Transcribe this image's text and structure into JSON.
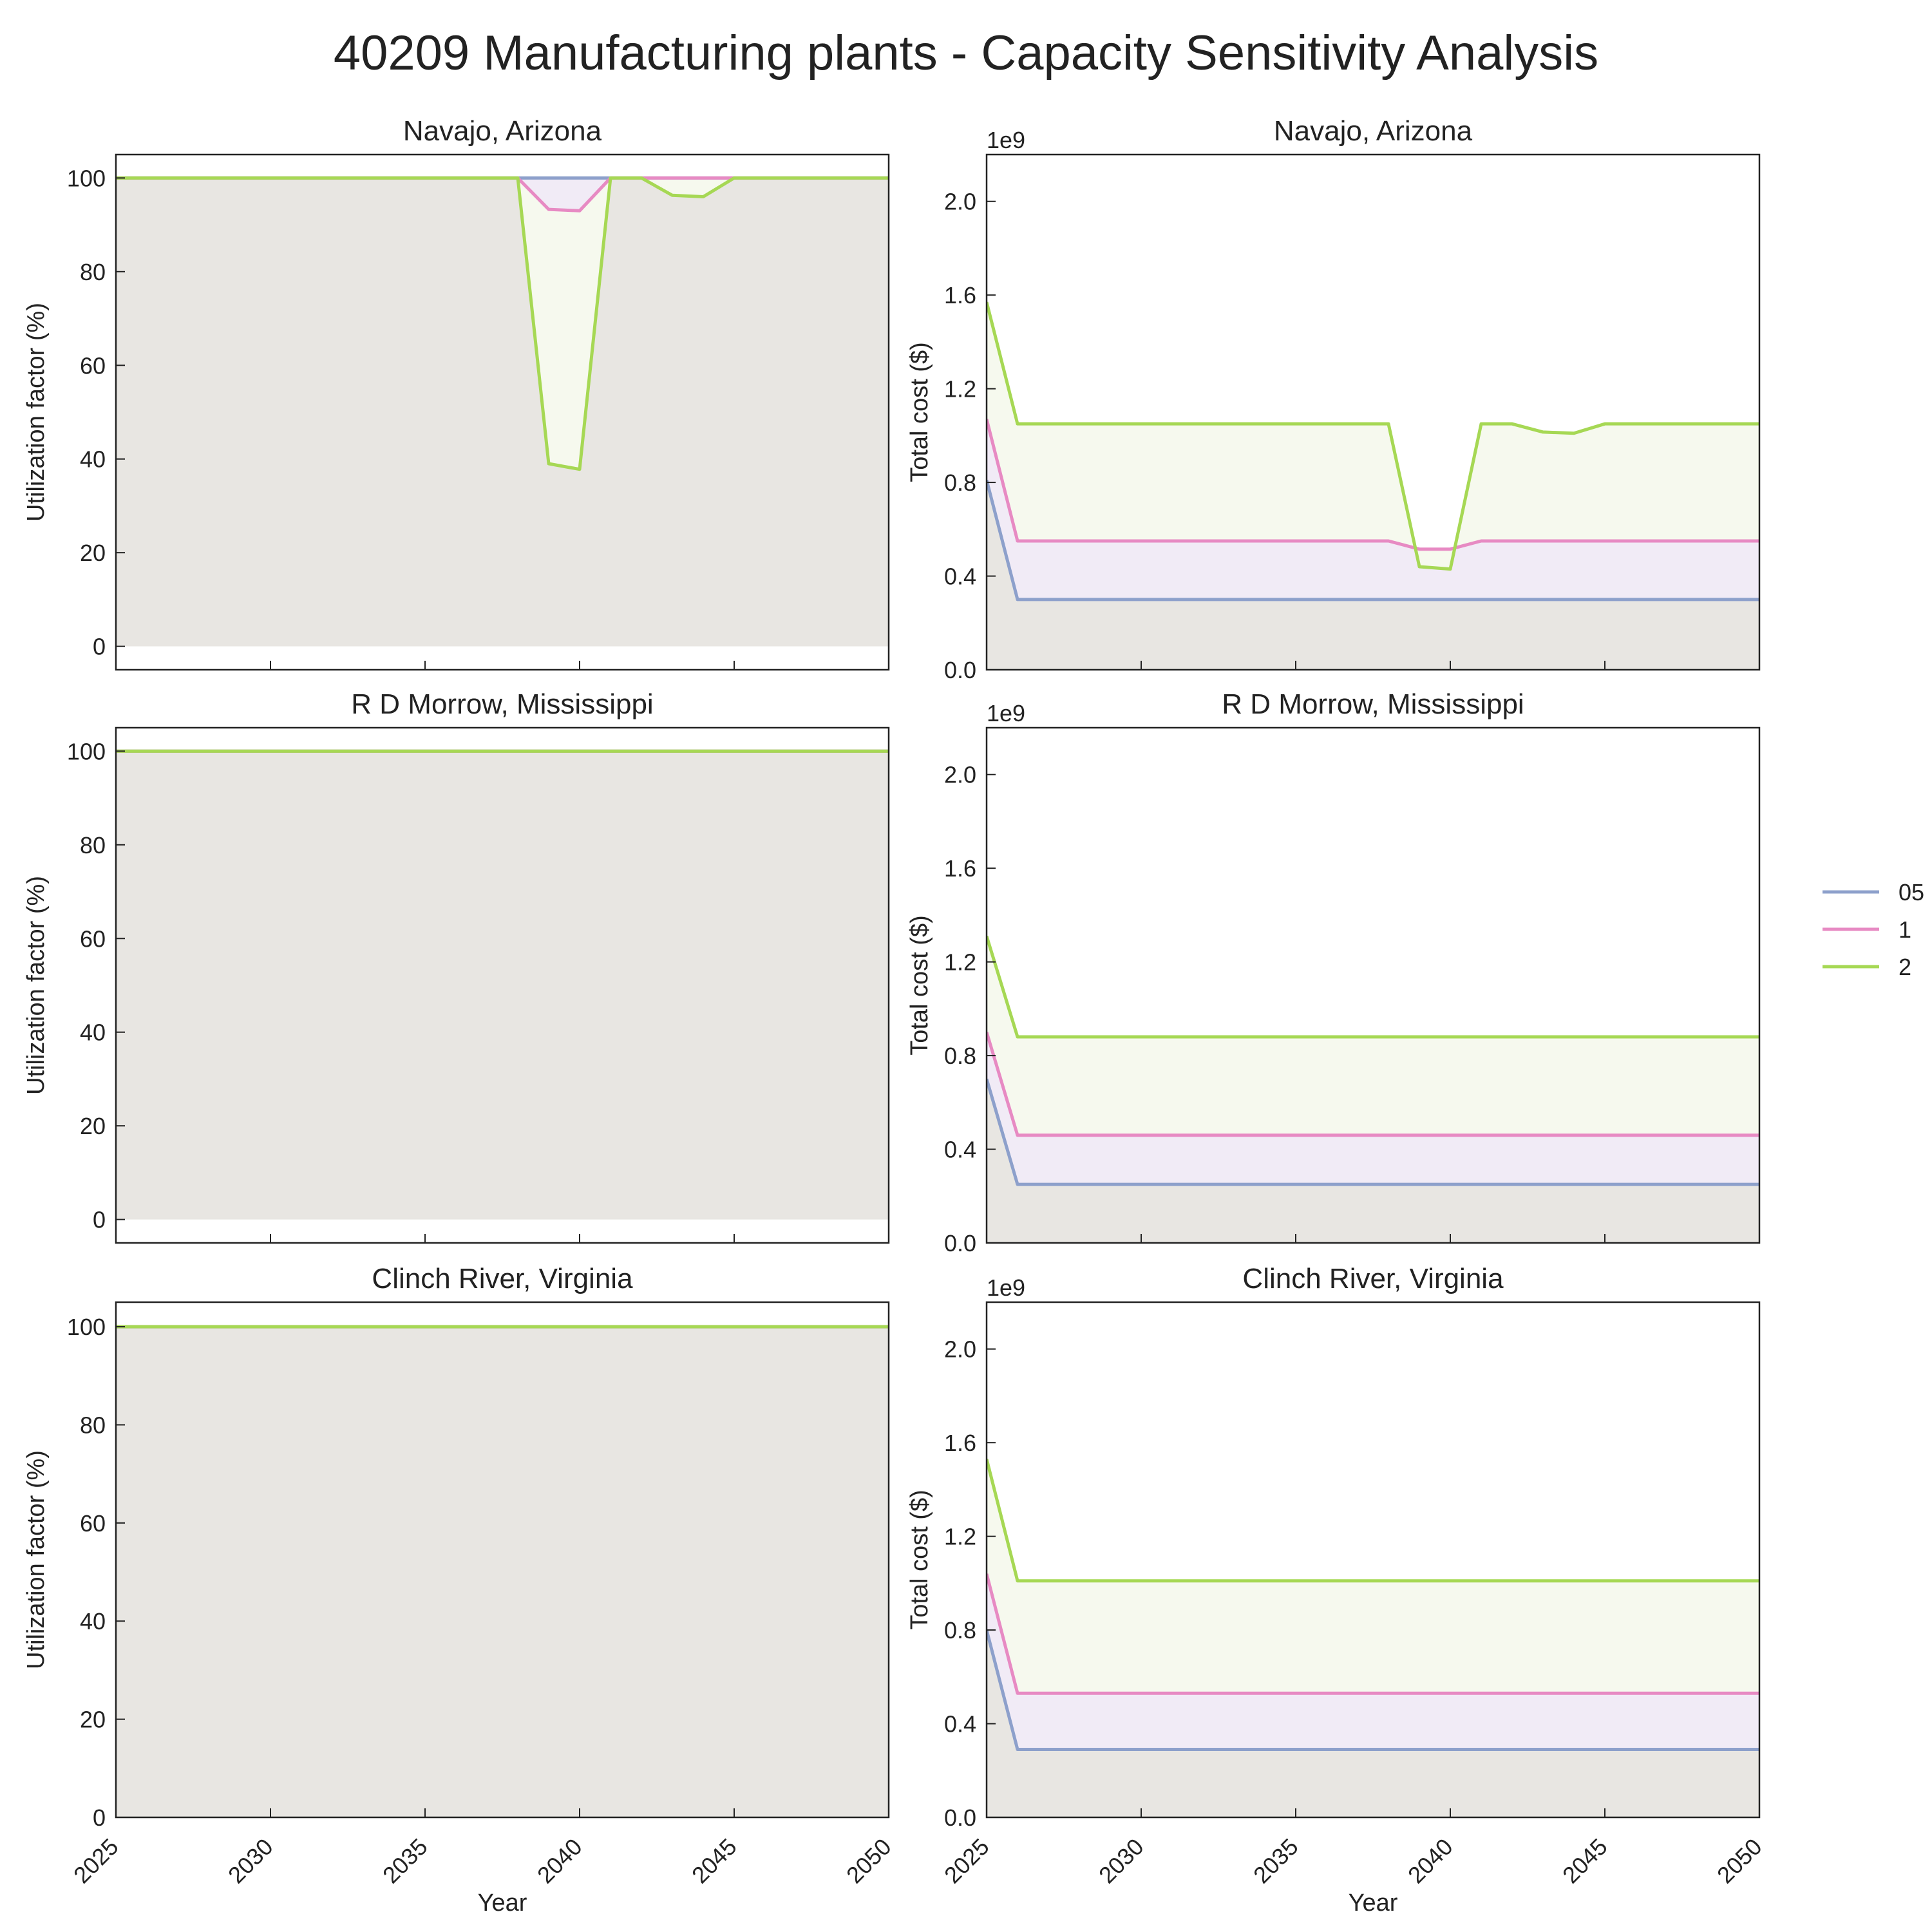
{
  "figure": {
    "title": "40209 Manufacturing plants - Capacity Sensitivity Analysis"
  },
  "legend": {
    "placement": "right",
    "entries": [
      {
        "name": "05",
        "color": "#8da0cb"
      },
      {
        "name": "1",
        "color": "#e78ac3"
      },
      {
        "name": "2",
        "color": "#a6d854"
      }
    ]
  },
  "chart_data": [
    {
      "type": "area",
      "title": "Navajo, Arizona",
      "ylabel": "Utilization factor (%)",
      "xlabel": "",
      "xlim": [
        2025,
        2050
      ],
      "ylim": [
        -5,
        105
      ],
      "yticks": [
        "0",
        "20",
        "40",
        "60",
        "80",
        "100"
      ],
      "x": [
        2025,
        2026,
        2027,
        2028,
        2029,
        2030,
        2031,
        2032,
        2033,
        2034,
        2035,
        2036,
        2037,
        2038,
        2039,
        2040,
        2041,
        2042,
        2043,
        2044,
        2045,
        2046,
        2047,
        2048,
        2049,
        2050
      ],
      "series": [
        {
          "name": "05",
          "values": [
            100,
            100,
            100,
            100,
            100,
            100,
            100,
            100,
            100,
            100,
            100,
            100,
            100,
            100,
            100,
            100,
            100,
            100,
            100,
            100,
            100,
            100,
            100,
            100,
            100,
            100
          ]
        },
        {
          "name": "1",
          "values": [
            100,
            100,
            100,
            100,
            100,
            100,
            100,
            100,
            100,
            100,
            100,
            100,
            100,
            100,
            93.3,
            93,
            100,
            100,
            100,
            100,
            100,
            100,
            100,
            100,
            100,
            100
          ]
        },
        {
          "name": "2",
          "values": [
            100,
            100,
            100,
            100,
            100,
            100,
            100,
            100,
            100,
            100,
            100,
            100,
            100,
            100,
            39,
            37.8,
            100,
            100,
            96.3,
            96,
            100,
            100,
            100,
            100,
            100,
            100
          ]
        }
      ]
    },
    {
      "type": "area",
      "title": "Navajo, Arizona",
      "ylabel": "Total cost ($)",
      "xlabel": "",
      "offset_text": "1e9",
      "xlim": [
        2025,
        2050
      ],
      "ylim": [
        0,
        2.2
      ],
      "yticks": [
        "0.0",
        "0.4",
        "0.8",
        "1.2",
        "1.6",
        "2.0"
      ],
      "x": [
        2025,
        2026,
        2027,
        2028,
        2029,
        2030,
        2031,
        2032,
        2033,
        2034,
        2035,
        2036,
        2037,
        2038,
        2039,
        2040,
        2041,
        2042,
        2043,
        2044,
        2045,
        2046,
        2047,
        2048,
        2049,
        2050
      ],
      "series": [
        {
          "name": "05",
          "values": [
            0.81,
            0.3,
            0.3,
            0.3,
            0.3,
            0.3,
            0.3,
            0.3,
            0.3,
            0.3,
            0.3,
            0.3,
            0.3,
            0.3,
            0.3,
            0.3,
            0.3,
            0.3,
            0.3,
            0.3,
            0.3,
            0.3,
            0.3,
            0.3,
            0.3,
            0.3
          ]
        },
        {
          "name": "1",
          "values": [
            1.07,
            0.55,
            0.55,
            0.55,
            0.55,
            0.55,
            0.55,
            0.55,
            0.55,
            0.55,
            0.55,
            0.55,
            0.55,
            0.55,
            0.515,
            0.515,
            0.55,
            0.55,
            0.55,
            0.55,
            0.55,
            0.55,
            0.55,
            0.55,
            0.55,
            0.55
          ]
        },
        {
          "name": "2",
          "values": [
            1.57,
            1.05,
            1.05,
            1.05,
            1.05,
            1.05,
            1.05,
            1.05,
            1.05,
            1.05,
            1.05,
            1.05,
            1.05,
            1.05,
            0.44,
            0.43,
            1.05,
            1.05,
            1.015,
            1.01,
            1.05,
            1.05,
            1.05,
            1.05,
            1.05,
            1.05
          ]
        }
      ]
    },
    {
      "type": "area",
      "title": "R D Morrow, Mississippi",
      "ylabel": "Utilization factor (%)",
      "xlabel": "",
      "xlim": [
        2025,
        2050
      ],
      "ylim": [
        -5,
        105
      ],
      "yticks": [
        "0",
        "20",
        "40",
        "60",
        "80",
        "100"
      ],
      "x": [
        2025,
        2026,
        2027,
        2028,
        2029,
        2030,
        2031,
        2032,
        2033,
        2034,
        2035,
        2036,
        2037,
        2038,
        2039,
        2040,
        2041,
        2042,
        2043,
        2044,
        2045,
        2046,
        2047,
        2048,
        2049,
        2050
      ],
      "series": [
        {
          "name": "05",
          "values": [
            100,
            100,
            100,
            100,
            100,
            100,
            100,
            100,
            100,
            100,
            100,
            100,
            100,
            100,
            100,
            100,
            100,
            100,
            100,
            100,
            100,
            100,
            100,
            100,
            100,
            100
          ]
        },
        {
          "name": "1",
          "values": [
            100,
            100,
            100,
            100,
            100,
            100,
            100,
            100,
            100,
            100,
            100,
            100,
            100,
            100,
            100,
            100,
            100,
            100,
            100,
            100,
            100,
            100,
            100,
            100,
            100,
            100
          ]
        },
        {
          "name": "2",
          "values": [
            100,
            100,
            100,
            100,
            100,
            100,
            100,
            100,
            100,
            100,
            100,
            100,
            100,
            100,
            100,
            100,
            100,
            100,
            100,
            100,
            100,
            100,
            100,
            100,
            100,
            100
          ]
        }
      ]
    },
    {
      "type": "area",
      "title": "R D Morrow, Mississippi",
      "ylabel": "Total cost ($)",
      "xlabel": "",
      "offset_text": "1e9",
      "xlim": [
        2025,
        2050
      ],
      "ylim": [
        0,
        2.2
      ],
      "yticks": [
        "0.0",
        "0.4",
        "0.8",
        "1.2",
        "1.6",
        "2.0"
      ],
      "x": [
        2025,
        2026,
        2027,
        2028,
        2029,
        2030,
        2031,
        2032,
        2033,
        2034,
        2035,
        2036,
        2037,
        2038,
        2039,
        2040,
        2041,
        2042,
        2043,
        2044,
        2045,
        2046,
        2047,
        2048,
        2049,
        2050
      ],
      "series": [
        {
          "name": "05",
          "values": [
            0.7,
            0.25,
            0.25,
            0.25,
            0.25,
            0.25,
            0.25,
            0.25,
            0.25,
            0.25,
            0.25,
            0.25,
            0.25,
            0.25,
            0.25,
            0.25,
            0.25,
            0.25,
            0.25,
            0.25,
            0.25,
            0.25,
            0.25,
            0.25,
            0.25,
            0.25
          ]
        },
        {
          "name": "1",
          "values": [
            0.9,
            0.46,
            0.46,
            0.46,
            0.46,
            0.46,
            0.46,
            0.46,
            0.46,
            0.46,
            0.46,
            0.46,
            0.46,
            0.46,
            0.46,
            0.46,
            0.46,
            0.46,
            0.46,
            0.46,
            0.46,
            0.46,
            0.46,
            0.46,
            0.46,
            0.46
          ]
        },
        {
          "name": "2",
          "values": [
            1.31,
            0.88,
            0.88,
            0.88,
            0.88,
            0.88,
            0.88,
            0.88,
            0.88,
            0.88,
            0.88,
            0.88,
            0.88,
            0.88,
            0.88,
            0.88,
            0.88,
            0.88,
            0.88,
            0.88,
            0.88,
            0.88,
            0.88,
            0.88,
            0.88,
            0.88
          ]
        }
      ]
    },
    {
      "type": "area",
      "title": "Clinch River, Virginia",
      "ylabel": "Utilization factor (%)",
      "xlabel": "Year",
      "xlim": [
        2025,
        2050
      ],
      "ylim": [
        0,
        105
      ],
      "yticks": [
        "0",
        "20",
        "40",
        "60",
        "80",
        "100"
      ],
      "xticks": [
        "2025",
        "2030",
        "2035",
        "2040",
        "2045",
        "2050"
      ],
      "x": [
        2025,
        2026,
        2027,
        2028,
        2029,
        2030,
        2031,
        2032,
        2033,
        2034,
        2035,
        2036,
        2037,
        2038,
        2039,
        2040,
        2041,
        2042,
        2043,
        2044,
        2045,
        2046,
        2047,
        2048,
        2049,
        2050
      ],
      "series": [
        {
          "name": "05",
          "values": [
            100,
            100,
            100,
            100,
            100,
            100,
            100,
            100,
            100,
            100,
            100,
            100,
            100,
            100,
            100,
            100,
            100,
            100,
            100,
            100,
            100,
            100,
            100,
            100,
            100,
            100
          ]
        },
        {
          "name": "1",
          "values": [
            100,
            100,
            100,
            100,
            100,
            100,
            100,
            100,
            100,
            100,
            100,
            100,
            100,
            100,
            100,
            100,
            100,
            100,
            100,
            100,
            100,
            100,
            100,
            100,
            100,
            100
          ]
        },
        {
          "name": "2",
          "values": [
            100,
            100,
            100,
            100,
            100,
            100,
            100,
            100,
            100,
            100,
            100,
            100,
            100,
            100,
            100,
            100,
            100,
            100,
            100,
            100,
            100,
            100,
            100,
            100,
            100,
            100
          ]
        }
      ]
    },
    {
      "type": "area",
      "title": "Clinch River, Virginia",
      "ylabel": "Total cost ($)",
      "xlabel": "Year",
      "offset_text": "1e9",
      "xlim": [
        2025,
        2050
      ],
      "ylim": [
        0,
        2.2
      ],
      "yticks": [
        "0.0",
        "0.4",
        "0.8",
        "1.2",
        "1.6",
        "2.0"
      ],
      "xticks": [
        "2025",
        "2030",
        "2035",
        "2040",
        "2045",
        "2050"
      ],
      "x": [
        2025,
        2026,
        2027,
        2028,
        2029,
        2030,
        2031,
        2032,
        2033,
        2034,
        2035,
        2036,
        2037,
        2038,
        2039,
        2040,
        2041,
        2042,
        2043,
        2044,
        2045,
        2046,
        2047,
        2048,
        2049,
        2050
      ],
      "series": [
        {
          "name": "05",
          "values": [
            0.8,
            0.29,
            0.29,
            0.29,
            0.29,
            0.29,
            0.29,
            0.29,
            0.29,
            0.29,
            0.29,
            0.29,
            0.29,
            0.29,
            0.29,
            0.29,
            0.29,
            0.29,
            0.29,
            0.29,
            0.29,
            0.29,
            0.29,
            0.29,
            0.29,
            0.29
          ]
        },
        {
          "name": "1",
          "values": [
            1.04,
            0.53,
            0.53,
            0.53,
            0.53,
            0.53,
            0.53,
            0.53,
            0.53,
            0.53,
            0.53,
            0.53,
            0.53,
            0.53,
            0.53,
            0.53,
            0.53,
            0.53,
            0.53,
            0.53,
            0.53,
            0.53,
            0.53,
            0.53,
            0.53,
            0.53
          ]
        },
        {
          "name": "2",
          "values": [
            1.53,
            1.01,
            1.01,
            1.01,
            1.01,
            1.01,
            1.01,
            1.01,
            1.01,
            1.01,
            1.01,
            1.01,
            1.01,
            1.01,
            1.01,
            1.01,
            1.01,
            1.01,
            1.01,
            1.01,
            1.01,
            1.01,
            1.01,
            1.01,
            1.01,
            1.01
          ]
        }
      ]
    }
  ],
  "fill_colors": [
    "#e8e6e2",
    "#f1ebf6",
    "#f6f9ee"
  ]
}
